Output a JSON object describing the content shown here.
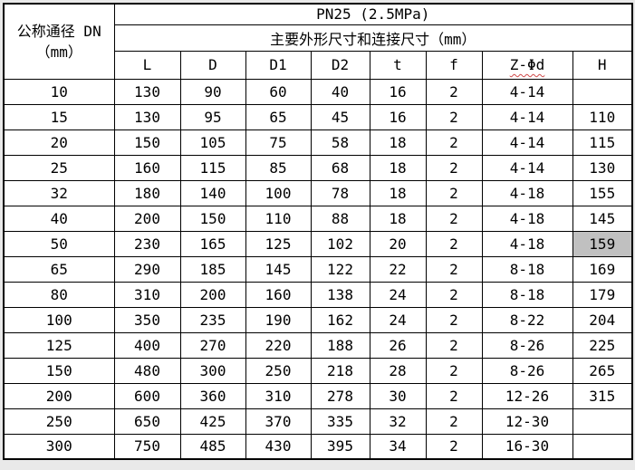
{
  "page": {
    "background_color": "#e9e9e9",
    "border_color": "#000000",
    "highlight_color": "#c0c0c0",
    "squiggle_color": "#d04a4a"
  },
  "table": {
    "corner_header_line1": "公称通径 DN",
    "corner_header_line2": "（mm）",
    "title_row": "PN25 (2.5MPa)",
    "subtitle_row": "主要外形尺寸和连接尺寸（mm）",
    "columns": [
      "L",
      "D",
      "D1",
      "D2",
      "t",
      "f",
      "Z-Φd",
      "H"
    ],
    "squiggle_column": "Z-Φd",
    "highlight": {
      "row_dn": "50",
      "column": "H"
    },
    "rows": [
      {
        "dn": "10",
        "values": [
          "130",
          "90",
          "60",
          "40",
          "16",
          "2",
          "4-14",
          ""
        ]
      },
      {
        "dn": "15",
        "values": [
          "130",
          "95",
          "65",
          "45",
          "16",
          "2",
          "4-14",
          "110"
        ]
      },
      {
        "dn": "20",
        "values": [
          "150",
          "105",
          "75",
          "58",
          "18",
          "2",
          "4-14",
          "115"
        ]
      },
      {
        "dn": "25",
        "values": [
          "160",
          "115",
          "85",
          "68",
          "18",
          "2",
          "4-14",
          "130"
        ]
      },
      {
        "dn": "32",
        "values": [
          "180",
          "140",
          "100",
          "78",
          "18",
          "2",
          "4-18",
          "155"
        ]
      },
      {
        "dn": "40",
        "values": [
          "200",
          "150",
          "110",
          "88",
          "18",
          "2",
          "4-18",
          "145"
        ]
      },
      {
        "dn": "50",
        "values": [
          "230",
          "165",
          "125",
          "102",
          "20",
          "2",
          "4-18",
          "159"
        ]
      },
      {
        "dn": "65",
        "values": [
          "290",
          "185",
          "145",
          "122",
          "22",
          "2",
          "8-18",
          "169"
        ]
      },
      {
        "dn": "80",
        "values": [
          "310",
          "200",
          "160",
          "138",
          "24",
          "2",
          "8-18",
          "179"
        ]
      },
      {
        "dn": "100",
        "values": [
          "350",
          "235",
          "190",
          "162",
          "24",
          "2",
          "8-22",
          "204"
        ]
      },
      {
        "dn": "125",
        "values": [
          "400",
          "270",
          "220",
          "188",
          "26",
          "2",
          "8-26",
          "225"
        ]
      },
      {
        "dn": "150",
        "values": [
          "480",
          "300",
          "250",
          "218",
          "28",
          "2",
          "8-26",
          "265"
        ]
      },
      {
        "dn": "200",
        "values": [
          "600",
          "360",
          "310",
          "278",
          "30",
          "2",
          "12-26",
          "315"
        ]
      },
      {
        "dn": "250",
        "values": [
          "650",
          "425",
          "370",
          "335",
          "32",
          "2",
          "12-30",
          ""
        ]
      },
      {
        "dn": "300",
        "values": [
          "750",
          "485",
          "430",
          "395",
          "34",
          "2",
          "16-30",
          ""
        ]
      }
    ]
  }
}
